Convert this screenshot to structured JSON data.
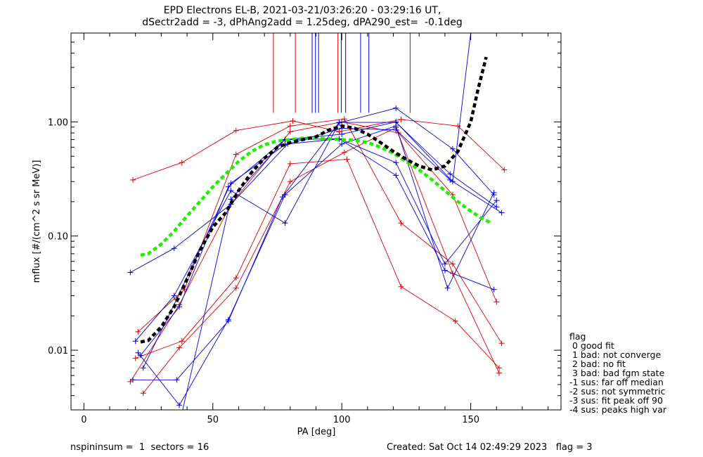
{
  "title_line1": "EPD Electrons EL-B, 2021-03-21/03:26:20 - 03:29:16 UT,",
  "title_line2": "dSectr2add = -3, dPhAng2add = 1.25deg, dPA290_est=  -0.1deg",
  "footer_left": "nspininsum =  1  sectors = 16",
  "footer_right": "Created: Sat Oct 14 02:49:29 2023   flag = 3",
  "legend": {
    "title": "flag",
    "items": [
      " 0 good fit",
      " 1 bad: not converge",
      " 2 bad: no fit",
      " 3 bad: bad fgm state",
      "-1 sus: far off median",
      "-2 sus: not symmetric",
      "-3 sus: fit peak off 90",
      "-4 sus: peaks high var"
    ]
  },
  "colors": {
    "red": "#e00000",
    "blue": "#0000dd",
    "black": "#000000",
    "green": "#22ee00",
    "axis": "#000000"
  },
  "chart_data": {
    "type": "line",
    "xlabel": "PA [deg]",
    "ylabel": "mflux [#/(cm^2 s sr MeV)]",
    "xlim": [
      -5,
      185
    ],
    "ylim": [
      0.003,
      6
    ],
    "yscale": "log",
    "xticks": [
      0,
      50,
      100,
      150
    ],
    "xticklabels": [
      "0",
      "50",
      "100",
      "150"
    ],
    "yticks": [
      0.01,
      0.1,
      1.0
    ],
    "yticklabels": [
      "0.01",
      "0.10",
      "1.00"
    ],
    "vlines": [
      {
        "x": 73.5,
        "color": "red"
      },
      {
        "x": 82.0,
        "color": "red"
      },
      {
        "x": 98.5,
        "color": "red"
      },
      {
        "x": 126.5,
        "color": "red"
      },
      {
        "x": 88.5,
        "color": "blue"
      },
      {
        "x": 89.8,
        "color": "blue"
      },
      {
        "x": 91.0,
        "color": "blue"
      },
      {
        "x": 99.8,
        "color": "blue"
      },
      {
        "x": 101.5,
        "color": "blue"
      },
      {
        "x": 107.3,
        "color": "blue"
      },
      {
        "x": 110.5,
        "color": "blue"
      }
    ],
    "vline_range": [
      1.2,
      6
    ],
    "series": [
      {
        "color": "red",
        "points": [
          [
            19,
            0.31
          ],
          [
            38,
            0.44
          ],
          [
            59,
            0.84
          ],
          [
            81,
            1.02
          ],
          [
            99,
            0.82
          ],
          [
            123,
            1.05
          ],
          [
            145,
            0.92
          ],
          [
            163,
            0.38
          ]
        ]
      },
      {
        "color": "red",
        "points": [
          [
            21,
            0.0145
          ],
          [
            39,
            0.034
          ],
          [
            59,
            0.52
          ],
          [
            80,
            0.92
          ],
          [
            101,
            1.06
          ],
          [
            123,
            0.13
          ],
          [
            143,
            0.057
          ],
          [
            162,
            0.0115
          ]
        ]
      },
      {
        "color": "red",
        "points": [
          [
            18,
            0.0053
          ],
          [
            37,
            0.025
          ],
          [
            57,
            0.19
          ],
          [
            80,
            0.82
          ],
          [
            100,
            1.0
          ],
          [
            122,
            0.8
          ],
          [
            143,
            0.23
          ],
          [
            160,
            0.0265
          ]
        ]
      },
      {
        "color": "red",
        "points": [
          [
            20,
            0.0085
          ],
          [
            38,
            0.012
          ],
          [
            59,
            0.043
          ],
          [
            80,
            0.43
          ],
          [
            102,
            0.47
          ],
          [
            123,
            0.036
          ],
          [
            144,
            0.018
          ],
          [
            161,
            0.007
          ]
        ]
      },
      {
        "color": "red",
        "points": [
          [
            23,
            0.0042
          ],
          [
            37,
            0.0105
          ],
          [
            59,
            0.035
          ],
          [
            80,
            0.3
          ],
          [
            101,
            0.54
          ],
          [
            121,
            0.89
          ],
          [
            143,
            0.047
          ],
          [
            161,
            0.0063
          ]
        ]
      },
      {
        "color": "blue",
        "points": [
          [
            18,
            0.048
          ],
          [
            35,
            0.078
          ],
          [
            57,
            0.19
          ],
          [
            79,
            0.64
          ],
          [
            99,
            0.71
          ],
          [
            121,
            0.34
          ],
          [
            140,
            0.05
          ],
          [
            159,
            0.034
          ]
        ]
      },
      {
        "color": "blue",
        "points": [
          [
            20,
            0.012
          ],
          [
            35,
            0.03
          ],
          [
            57,
            0.25
          ],
          [
            78,
            0.13
          ],
          [
            99,
            0.98
          ],
          [
            121,
            1.32
          ],
          [
            143,
            0.58
          ],
          [
            159,
            0.23
          ]
        ]
      },
      {
        "color": "blue",
        "points": [
          [
            21,
            0.0095
          ],
          [
            37,
            0.0033
          ],
          [
            56,
            0.0185
          ],
          [
            78,
            0.23
          ],
          [
            100,
            0.64
          ],
          [
            121,
            0.92
          ],
          [
            141,
            0.035
          ],
          [
            159,
            0.24
          ]
        ]
      },
      {
        "color": "blue",
        "points": [
          [
            22,
            0.009
          ],
          [
            37,
            0.024
          ],
          [
            56,
            0.27
          ],
          [
            78,
            0.7
          ],
          [
            99,
            0.71
          ],
          [
            121,
            0.44
          ],
          [
            140,
            0.057
          ],
          [
            160,
            0.205
          ]
        ]
      },
      {
        "color": "blue",
        "points": [
          [
            19,
            0.0055
          ],
          [
            36,
            0.0055
          ],
          [
            56,
            0.018
          ],
          [
            77,
            0.22
          ],
          [
            99,
            0.99
          ],
          [
            121,
            0.99
          ],
          [
            142,
            0.35
          ],
          [
            160,
            0.18
          ]
        ]
      },
      {
        "color": "blue",
        "points": [
          [
            17,
            0.0029
          ],
          [
            38,
            0.0028
          ],
          [
            57,
            0.21
          ],
          [
            78,
            0.7
          ],
          [
            100,
            0.78
          ],
          [
            121,
            1.0
          ],
          [
            143,
            0.3
          ],
          [
            150,
            6.0
          ]
        ]
      },
      {
        "color": "blue",
        "points": [
          [
            23,
            0.007
          ],
          [
            36,
            0.028
          ],
          [
            57,
            0.29
          ],
          [
            78,
            0.63
          ],
          [
            100,
            0.88
          ],
          [
            121,
            0.85
          ],
          [
            142,
            0.31
          ],
          [
            162,
            0.16
          ]
        ]
      }
    ],
    "fit_black": [
      [
        22,
        0.0118
      ],
      [
        25,
        0.0122
      ],
      [
        30,
        0.016
      ],
      [
        35,
        0.024
      ],
      [
        40,
        0.042
      ],
      [
        45,
        0.075
      ],
      [
        50,
        0.12
      ],
      [
        55,
        0.16
      ],
      [
        60,
        0.25
      ],
      [
        65,
        0.36
      ],
      [
        70,
        0.48
      ],
      [
        75,
        0.6
      ],
      [
        80,
        0.66
      ],
      [
        85,
        0.7
      ],
      [
        90,
        0.74
      ],
      [
        95,
        0.85
      ],
      [
        100,
        0.92
      ],
      [
        105,
        0.88
      ],
      [
        110,
        0.78
      ],
      [
        115,
        0.66
      ],
      [
        120,
        0.55
      ],
      [
        125,
        0.47
      ],
      [
        130,
        0.41
      ],
      [
        135,
        0.38
      ],
      [
        140,
        0.41
      ],
      [
        145,
        0.55
      ],
      [
        150,
        1.0
      ],
      [
        153,
        2.0
      ],
      [
        156,
        3.7
      ]
    ],
    "fit_green": [
      [
        22,
        0.068
      ],
      [
        25,
        0.07
      ],
      [
        30,
        0.085
      ],
      [
        35,
        0.11
      ],
      [
        40,
        0.15
      ],
      [
        45,
        0.2
      ],
      [
        50,
        0.27
      ],
      [
        55,
        0.35
      ],
      [
        60,
        0.45
      ],
      [
        65,
        0.55
      ],
      [
        70,
        0.63
      ],
      [
        75,
        0.68
      ],
      [
        80,
        0.7
      ],
      [
        85,
        0.72
      ],
      [
        90,
        0.72
      ],
      [
        95,
        0.71
      ],
      [
        100,
        0.7
      ],
      [
        105,
        0.69
      ],
      [
        110,
        0.66
      ],
      [
        115,
        0.6
      ],
      [
        120,
        0.53
      ],
      [
        125,
        0.45
      ],
      [
        130,
        0.38
      ],
      [
        135,
        0.31
      ],
      [
        140,
        0.25
      ],
      [
        145,
        0.2
      ],
      [
        150,
        0.165
      ],
      [
        155,
        0.14
      ],
      [
        158,
        0.13
      ]
    ]
  }
}
